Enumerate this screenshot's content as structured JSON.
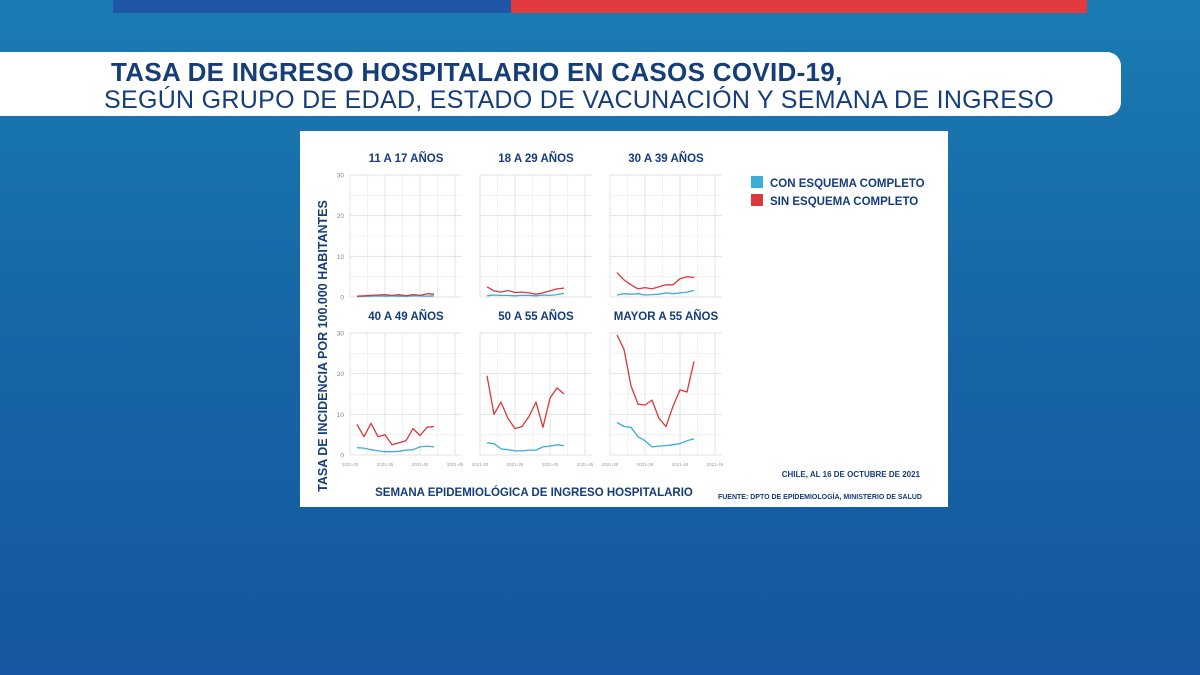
{
  "header": {
    "title_line1": "TASA DE INGRESO HOSPITALARIO EN CASOS COVID-19,",
    "title_line2": "SEGÚN GRUPO DE EDAD, ESTADO DE VACUNACIÓN Y SEMANA DE INGRESO"
  },
  "colors": {
    "con_esquema": "#3aaed8",
    "sin_esquema": "#d9383c",
    "text": "#143d7a",
    "grid": "#e3e3e3"
  },
  "chart_data": {
    "type": "line",
    "ylabel": "TASA DE INCIDENCIA POR 100.000 HABITANTES",
    "xlabel": "SEMANA EPIDEMIOLÓGICA DE INGRESO HOSPITALARIO",
    "ylim": [
      0,
      30
    ],
    "yticks": [
      0,
      10,
      20,
      30
    ],
    "xlim": [
      2021.3,
      2021.46
    ],
    "xticks": [
      2021.3,
      2021.35,
      2021.4,
      2021.45
    ],
    "xtick_labels": [
      "2021-30",
      "2021-35",
      "2021-40",
      "2021-45"
    ],
    "x": [
      2021.31,
      2021.32,
      2021.33,
      2021.34,
      2021.35,
      2021.36,
      2021.37,
      2021.38,
      2021.39,
      2021.4,
      2021.41,
      2021.42
    ],
    "legend": [
      "CON ESQUEMA COMPLETO",
      "SIN ESQUEMA COMPLETO"
    ],
    "legend_placement": "top-right",
    "grid": true,
    "note": "CHILE, AL 16 DE OCTUBRE DE 2021",
    "source": "FUENTE: DPTO DE EPIDEMIOLOGÍA, MINISTERIO DE SALUD",
    "panels": [
      {
        "title": "11 A 17 AÑOS",
        "con": [
          0.1,
          0.2,
          0.2,
          0.3,
          0.2,
          0.3,
          0.2,
          0.2,
          0.3,
          0.3,
          0.2,
          0.3
        ],
        "sin": [
          0.2,
          0.3,
          0.4,
          0.5,
          0.6,
          0.4,
          0.6,
          0.3,
          0.6,
          0.4,
          0.8,
          0.7
        ]
      },
      {
        "title": "18 A 29 AÑOS",
        "con": [
          0.3,
          0.5,
          0.4,
          0.4,
          0.3,
          0.4,
          0.4,
          0.3,
          0.5,
          0.4,
          0.6,
          0.9
        ],
        "sin": [
          2.5,
          1.5,
          1.2,
          1.6,
          1.1,
          1.2,
          1.0,
          0.7,
          1.0,
          1.5,
          2.0,
          2.2
        ]
      },
      {
        "title": "30 A 39 AÑOS",
        "con": [
          0.5,
          0.8,
          0.7,
          0.8,
          0.5,
          0.6,
          0.7,
          1.0,
          0.8,
          1.0,
          1.2,
          1.6
        ],
        "sin": [
          6.0,
          4.2,
          3.0,
          2.0,
          2.3,
          2.0,
          2.5,
          3.0,
          3.0,
          4.5,
          5.0,
          4.8
        ]
      },
      {
        "title": "40 A 49 AÑOS",
        "con": [
          1.8,
          1.7,
          1.3,
          1.0,
          0.8,
          0.8,
          0.9,
          1.2,
          1.3,
          2.0,
          2.2,
          2.0
        ],
        "sin": [
          7.5,
          4.5,
          7.8,
          4.5,
          5.0,
          2.5,
          3.0,
          3.5,
          6.5,
          4.8,
          6.8,
          7.0
        ]
      },
      {
        "title": "50 A 55 AÑOS",
        "con": [
          3.0,
          2.8,
          1.5,
          1.3,
          1.0,
          1.0,
          1.2,
          1.2,
          2.0,
          2.2,
          2.5,
          2.3
        ],
        "sin": [
          19.5,
          10.0,
          13.0,
          9.0,
          6.5,
          7.0,
          9.5,
          13.0,
          6.8,
          14.0,
          16.5,
          15.0
        ]
      },
      {
        "title": "MAYOR A 55 AÑOS",
        "con": [
          8.0,
          7.0,
          6.8,
          4.5,
          3.5,
          2.0,
          2.2,
          2.3,
          2.5,
          2.8,
          3.5,
          4.0
        ],
        "sin": [
          29.5,
          26.0,
          17.0,
          12.5,
          12.3,
          13.5,
          9.0,
          7.0,
          12.0,
          16.0,
          15.5,
          23.0
        ]
      }
    ]
  }
}
